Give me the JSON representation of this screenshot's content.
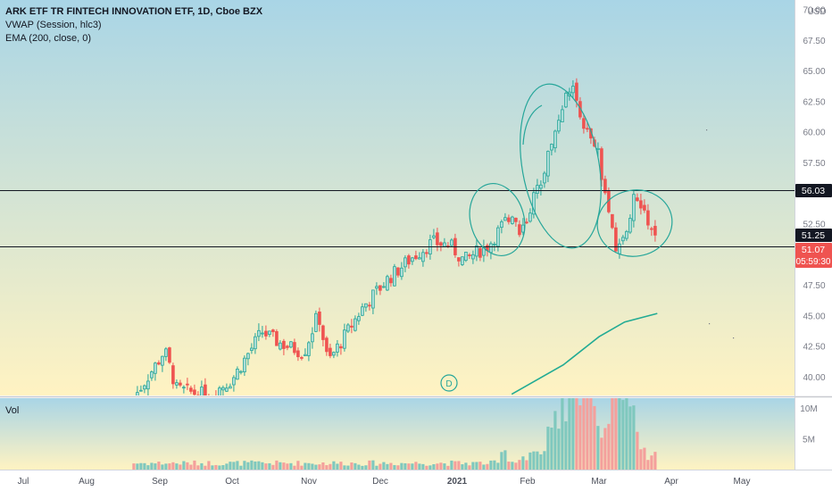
{
  "header": {
    "title": "ARK ETF TR FINTECH INNOVATION ETF, 1D, Cboe BZX",
    "indicator1": "VWAP (Session, hlc3)",
    "indicator2": "EMA (200, close, 0)"
  },
  "volume_label": "Vol",
  "currency": "USD",
  "price_tags": {
    "resistance": "56.03",
    "last_close": "51.25",
    "current": "51.07",
    "countdown": "05:59:30"
  },
  "dividend_marker": "D",
  "colors": {
    "up": "#26a69a",
    "down": "#ef5350",
    "ema": "#22ab94",
    "annotation": "#26a69a",
    "line": "#131722",
    "bg_top": "#a9d5e6",
    "bg_bottom": "#fff3c2"
  },
  "chart_data": {
    "type": "candlestick",
    "ylim": [
      38.5,
      70.8
    ],
    "y_ticks": [
      "70.00",
      "67.50",
      "65.00",
      "62.50",
      "60.00",
      "57.50",
      "55.00",
      "52.50",
      "50.00",
      "47.50",
      "45.00",
      "42.50",
      "40.00"
    ],
    "x_ticks": [
      "Jul",
      "Aug",
      "Sep",
      "Oct",
      "Nov",
      "Dec",
      "2021",
      "Feb",
      "Mar",
      "Apr",
      "May"
    ],
    "volume_ticks": [
      "10M",
      "5M"
    ],
    "horizontal_lines": [
      56.03,
      51.07
    ],
    "ohlc_keypoints": [
      [
        "Aug 21",
        38.3
      ],
      [
        "Sep 1",
        41.5
      ],
      [
        "Sep 3",
        42.2
      ],
      [
        "Sep 8",
        39.0
      ],
      [
        "Sep 21",
        38.5
      ],
      [
        "Oct 1",
        39.8
      ],
      [
        "Oct 13",
        43.7
      ],
      [
        "Oct 20",
        42.8
      ],
      [
        "Oct 30",
        42.0
      ],
      [
        "Nov 5",
        45.2
      ],
      [
        "Nov 9",
        41.2
      ],
      [
        "Nov 24",
        45.8
      ],
      [
        "Dec 4",
        48.0
      ],
      [
        "Dec 14",
        49.8
      ],
      [
        "Dec 22",
        51.0
      ],
      [
        "Dec 29",
        50.8
      ],
      [
        "Jan 4",
        49.5
      ],
      [
        "Jan 8",
        50.0
      ],
      [
        "Jan 15",
        50.8
      ],
      [
        "Jan 25",
        53.5
      ],
      [
        "Jan 29",
        51.8
      ],
      [
        "Feb 5",
        55.5
      ],
      [
        "Feb 12",
        60.0
      ],
      [
        "Feb 16",
        63.0
      ],
      [
        "Feb 19",
        63.8
      ],
      [
        "Feb 24",
        60.0
      ],
      [
        "Mar 1",
        58.0
      ],
      [
        "Mar 4",
        54.5
      ],
      [
        "Mar 9",
        50.0
      ],
      [
        "Mar 12",
        51.5
      ],
      [
        "Mar 16",
        55.0
      ],
      [
        "Mar 19",
        53.5
      ],
      [
        "Mar 23",
        52.5
      ],
      [
        "Mar 26",
        51.07
      ]
    ],
    "ema_points": [
      [
        "Jan 25",
        38.6
      ],
      [
        "Feb 15",
        41.0
      ],
      [
        "Mar 1",
        43.3
      ],
      [
        "Mar 12",
        44.5
      ],
      [
        "Mar 26",
        45.2
      ]
    ],
    "volume_range": [
      0,
      11000000
    ],
    "volume_peaks": [
      [
        "Feb 17",
        9500000
      ],
      [
        "Feb 22",
        10100000
      ],
      [
        "Mar 10",
        9100000
      ]
    ]
  }
}
